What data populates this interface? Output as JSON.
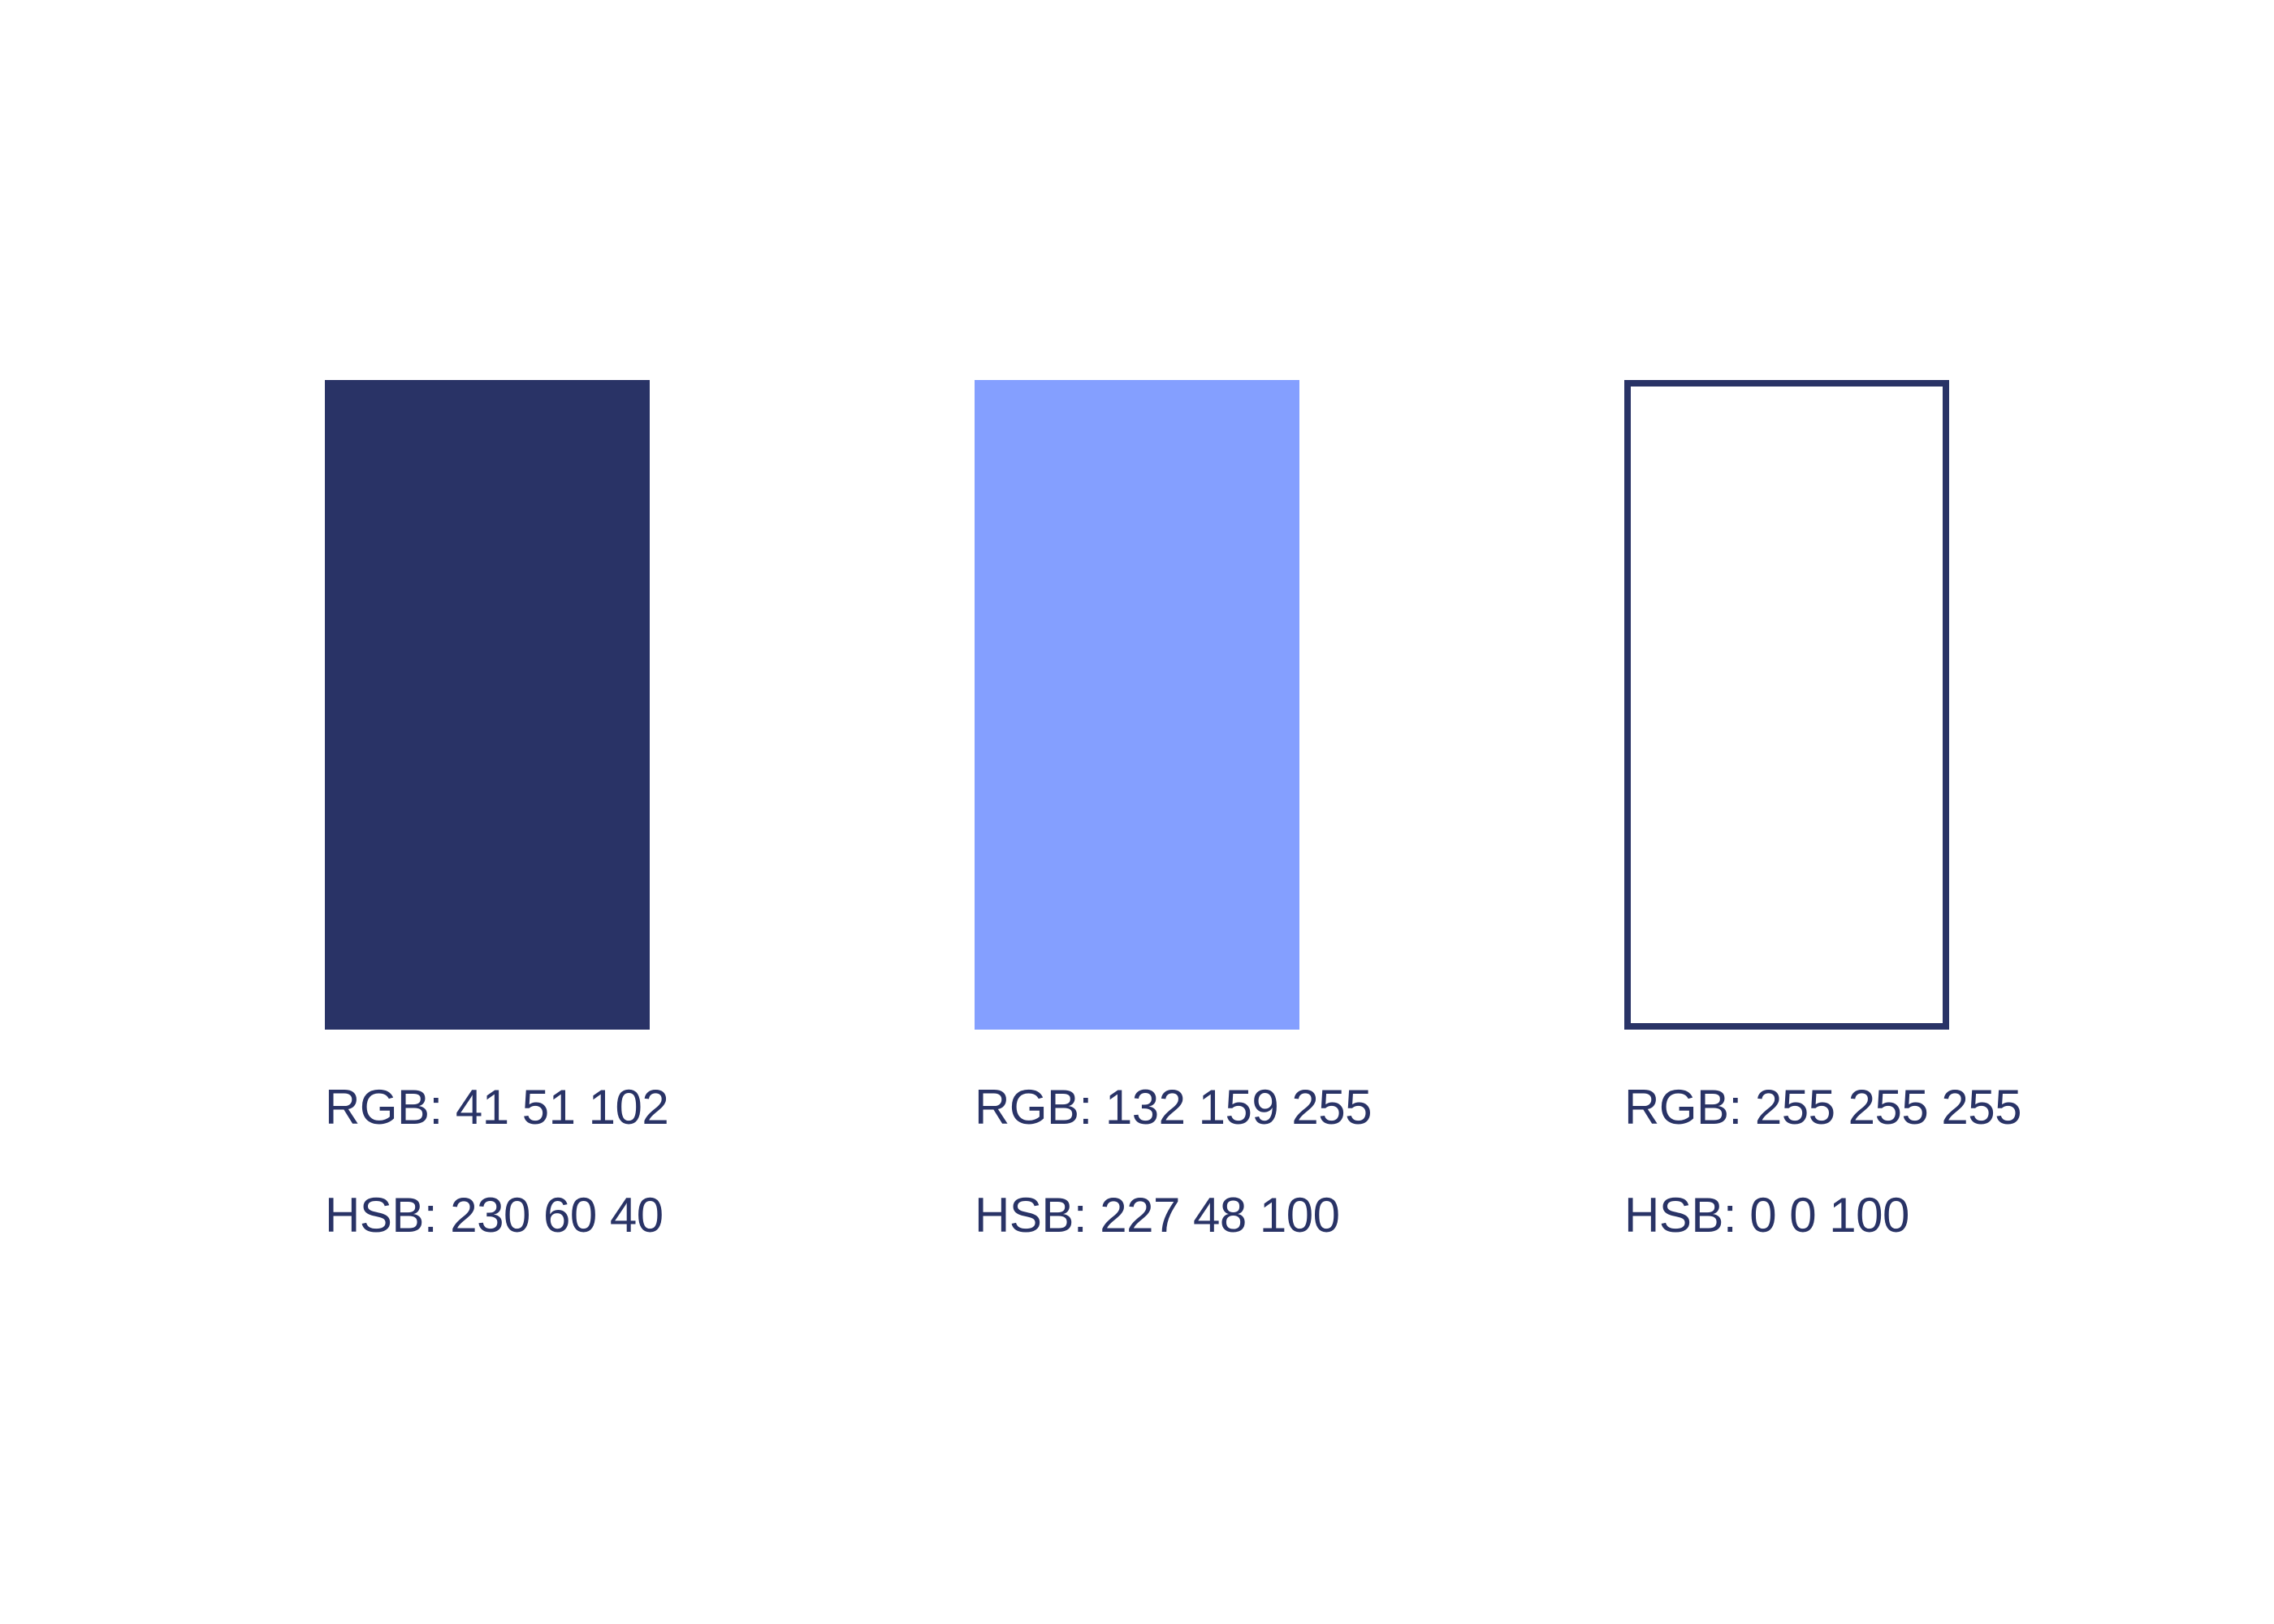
{
  "page": {
    "background": "#FFFFFF",
    "text_color": "#293366"
  },
  "palette": {
    "swatches": [
      {
        "name": "dark-navy",
        "fill": "#293366",
        "outline_color": "",
        "rgb_label": "RGB: 41 51 102",
        "hsb_label": "HSB: 230 60 40"
      },
      {
        "name": "periwinkle-blue",
        "fill": "#849FFF",
        "outline_color": "",
        "rgb_label": "RGB: 132 159 255",
        "hsb_label": "HSB: 227 48 100"
      },
      {
        "name": "white",
        "fill": "#FFFFFF",
        "outline_color": "#293366",
        "rgb_label": "RGB: 255 255 255",
        "hsb_label": "HSB: 0 0 100"
      }
    ]
  }
}
